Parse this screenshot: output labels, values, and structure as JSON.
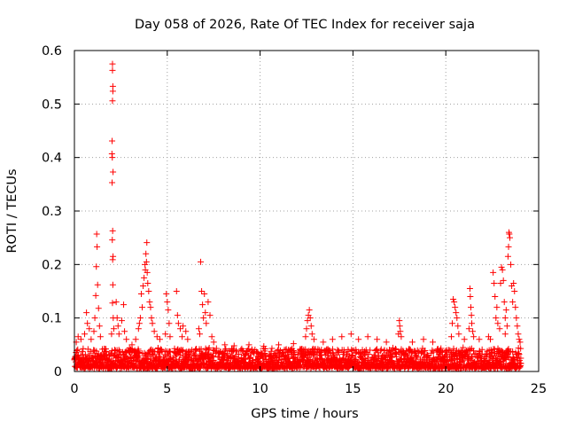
{
  "chart_data": {
    "type": "scatter",
    "title": "Day 058 of 2026, Rate Of TEC Index for receiver saja",
    "xlabel": "GPS time / hours",
    "ylabel": "ROTI / TECUs",
    "xlim": [
      0,
      25
    ],
    "ylim": [
      0,
      0.6
    ],
    "x_ticks": [
      0,
      5,
      10,
      15,
      20,
      25
    ],
    "x_tick_labels": [
      "0",
      "5",
      "10",
      "15",
      "20",
      "25"
    ],
    "y_ticks": [
      0,
      0.1,
      0.2,
      0.3,
      0.4,
      0.5,
      0.6
    ],
    "y_tick_labels": [
      "0",
      "0.1",
      "0.2",
      "0.3",
      "0.4",
      "0.5",
      "0.6"
    ],
    "grid": true,
    "marker": "+",
    "marker_color": "#ff0000",
    "series": [
      {
        "name": "ROTI",
        "baseline": {
          "x_start": 0.0,
          "x_end": 24.05,
          "count": 2400,
          "typical_min": 0.005,
          "typical_max": 0.045
        },
        "points": [
          {
            "x": 2.05,
            "y": 0.575
          },
          {
            "x": 2.05,
            "y": 0.563
          },
          {
            "x": 2.07,
            "y": 0.533
          },
          {
            "x": 2.07,
            "y": 0.524
          },
          {
            "x": 2.05,
            "y": 0.506
          },
          {
            "x": 2.03,
            "y": 0.431
          },
          {
            "x": 2.02,
            "y": 0.407
          },
          {
            "x": 2.04,
            "y": 0.4
          },
          {
            "x": 2.08,
            "y": 0.373
          },
          {
            "x": 2.03,
            "y": 0.353
          },
          {
            "x": 2.06,
            "y": 0.263
          },
          {
            "x": 2.04,
            "y": 0.246
          },
          {
            "x": 2.08,
            "y": 0.215
          },
          {
            "x": 2.06,
            "y": 0.209
          },
          {
            "x": 2.07,
            "y": 0.162
          },
          {
            "x": 2.05,
            "y": 0.128
          },
          {
            "x": 2.09,
            "y": 0.1
          },
          {
            "x": 2.12,
            "y": 0.08
          },
          {
            "x": 2.0,
            "y": 0.07
          },
          {
            "x": 1.2,
            "y": 0.257
          },
          {
            "x": 1.22,
            "y": 0.233
          },
          {
            "x": 1.18,
            "y": 0.196
          },
          {
            "x": 1.25,
            "y": 0.162
          },
          {
            "x": 1.15,
            "y": 0.142
          },
          {
            "x": 1.3,
            "y": 0.118
          },
          {
            "x": 1.1,
            "y": 0.1
          },
          {
            "x": 1.35,
            "y": 0.085
          },
          {
            "x": 1.05,
            "y": 0.075
          },
          {
            "x": 1.4,
            "y": 0.065
          },
          {
            "x": 0.65,
            "y": 0.11
          },
          {
            "x": 0.7,
            "y": 0.09
          },
          {
            "x": 0.8,
            "y": 0.08
          },
          {
            "x": 0.55,
            "y": 0.07
          },
          {
            "x": 0.2,
            "y": 0.065
          },
          {
            "x": 0.1,
            "y": 0.055
          },
          {
            "x": 0.35,
            "y": 0.06
          },
          {
            "x": 0.9,
            "y": 0.06
          },
          {
            "x": 2.25,
            "y": 0.13
          },
          {
            "x": 2.3,
            "y": 0.1
          },
          {
            "x": 2.35,
            "y": 0.085
          },
          {
            "x": 2.4,
            "y": 0.07
          },
          {
            "x": 2.55,
            "y": 0.095
          },
          {
            "x": 2.65,
            "y": 0.125
          },
          {
            "x": 2.7,
            "y": 0.075
          },
          {
            "x": 2.8,
            "y": 0.06
          },
          {
            "x": 3.1,
            "y": 0.05
          },
          {
            "x": 3.3,
            "y": 0.06
          },
          {
            "x": 3.55,
            "y": 0.1
          },
          {
            "x": 3.6,
            "y": 0.145
          },
          {
            "x": 3.65,
            "y": 0.12
          },
          {
            "x": 3.7,
            "y": 0.16
          },
          {
            "x": 3.75,
            "y": 0.175
          },
          {
            "x": 3.8,
            "y": 0.2
          },
          {
            "x": 3.82,
            "y": 0.19
          },
          {
            "x": 3.85,
            "y": 0.22
          },
          {
            "x": 3.88,
            "y": 0.205
          },
          {
            "x": 3.9,
            "y": 0.241
          },
          {
            "x": 3.92,
            "y": 0.185
          },
          {
            "x": 3.95,
            "y": 0.165
          },
          {
            "x": 4.0,
            "y": 0.15
          },
          {
            "x": 4.05,
            "y": 0.13
          },
          {
            "x": 4.1,
            "y": 0.12
          },
          {
            "x": 4.15,
            "y": 0.1
          },
          {
            "x": 4.2,
            "y": 0.09
          },
          {
            "x": 4.3,
            "y": 0.075
          },
          {
            "x": 4.45,
            "y": 0.065
          },
          {
            "x": 3.45,
            "y": 0.08
          },
          {
            "x": 3.5,
            "y": 0.09
          },
          {
            "x": 4.6,
            "y": 0.06
          },
          {
            "x": 4.95,
            "y": 0.145
          },
          {
            "x": 5.0,
            "y": 0.13
          },
          {
            "x": 5.05,
            "y": 0.115
          },
          {
            "x": 5.1,
            "y": 0.09
          },
          {
            "x": 4.9,
            "y": 0.07
          },
          {
            "x": 5.15,
            "y": 0.065
          },
          {
            "x": 5.5,
            "y": 0.15
          },
          {
            "x": 5.55,
            "y": 0.105
          },
          {
            "x": 5.6,
            "y": 0.09
          },
          {
            "x": 5.7,
            "y": 0.08
          },
          {
            "x": 5.85,
            "y": 0.085
          },
          {
            "x": 6.0,
            "y": 0.075
          },
          {
            "x": 5.8,
            "y": 0.065
          },
          {
            "x": 6.1,
            "y": 0.06
          },
          {
            "x": 6.8,
            "y": 0.205
          },
          {
            "x": 6.85,
            "y": 0.15
          },
          {
            "x": 7.0,
            "y": 0.145
          },
          {
            "x": 6.9,
            "y": 0.125
          },
          {
            "x": 7.05,
            "y": 0.11
          },
          {
            "x": 6.95,
            "y": 0.1
          },
          {
            "x": 7.1,
            "y": 0.09
          },
          {
            "x": 7.2,
            "y": 0.13
          },
          {
            "x": 7.3,
            "y": 0.105
          },
          {
            "x": 6.7,
            "y": 0.08
          },
          {
            "x": 6.75,
            "y": 0.07
          },
          {
            "x": 7.4,
            "y": 0.065
          },
          {
            "x": 7.5,
            "y": 0.055
          },
          {
            "x": 8.1,
            "y": 0.05
          },
          {
            "x": 8.6,
            "y": 0.048
          },
          {
            "x": 9.4,
            "y": 0.05
          },
          {
            "x": 10.2,
            "y": 0.047
          },
          {
            "x": 11.0,
            "y": 0.05
          },
          {
            "x": 11.8,
            "y": 0.052
          },
          {
            "x": 12.5,
            "y": 0.08
          },
          {
            "x": 12.55,
            "y": 0.095
          },
          {
            "x": 12.6,
            "y": 0.105
          },
          {
            "x": 12.65,
            "y": 0.115
          },
          {
            "x": 12.7,
            "y": 0.1
          },
          {
            "x": 12.75,
            "y": 0.085
          },
          {
            "x": 12.8,
            "y": 0.07
          },
          {
            "x": 12.45,
            "y": 0.065
          },
          {
            "x": 12.9,
            "y": 0.06
          },
          {
            "x": 13.4,
            "y": 0.055
          },
          {
            "x": 13.9,
            "y": 0.06
          },
          {
            "x": 14.4,
            "y": 0.065
          },
          {
            "x": 14.9,
            "y": 0.07
          },
          {
            "x": 15.3,
            "y": 0.06
          },
          {
            "x": 15.8,
            "y": 0.065
          },
          {
            "x": 16.3,
            "y": 0.06
          },
          {
            "x": 16.8,
            "y": 0.055
          },
          {
            "x": 17.5,
            "y": 0.095
          },
          {
            "x": 17.52,
            "y": 0.085
          },
          {
            "x": 17.55,
            "y": 0.075
          },
          {
            "x": 17.45,
            "y": 0.07
          },
          {
            "x": 17.6,
            "y": 0.065
          },
          {
            "x": 18.2,
            "y": 0.055
          },
          {
            "x": 18.8,
            "y": 0.06
          },
          {
            "x": 19.3,
            "y": 0.055
          },
          {
            "x": 20.4,
            "y": 0.135
          },
          {
            "x": 20.45,
            "y": 0.13
          },
          {
            "x": 20.5,
            "y": 0.12
          },
          {
            "x": 20.55,
            "y": 0.11
          },
          {
            "x": 20.6,
            "y": 0.1
          },
          {
            "x": 20.35,
            "y": 0.09
          },
          {
            "x": 20.65,
            "y": 0.085
          },
          {
            "x": 20.7,
            "y": 0.07
          },
          {
            "x": 20.3,
            "y": 0.065
          },
          {
            "x": 21.0,
            "y": 0.06
          },
          {
            "x": 21.3,
            "y": 0.155
          },
          {
            "x": 21.32,
            "y": 0.14
          },
          {
            "x": 21.35,
            "y": 0.12
          },
          {
            "x": 21.38,
            "y": 0.105
          },
          {
            "x": 21.4,
            "y": 0.09
          },
          {
            "x": 21.25,
            "y": 0.08
          },
          {
            "x": 21.45,
            "y": 0.075
          },
          {
            "x": 21.5,
            "y": 0.065
          },
          {
            "x": 21.8,
            "y": 0.06
          },
          {
            "x": 22.3,
            "y": 0.065
          },
          {
            "x": 22.55,
            "y": 0.185
          },
          {
            "x": 22.6,
            "y": 0.165
          },
          {
            "x": 22.65,
            "y": 0.14
          },
          {
            "x": 22.7,
            "y": 0.1
          },
          {
            "x": 22.75,
            "y": 0.12
          },
          {
            "x": 22.8,
            "y": 0.09
          },
          {
            "x": 22.9,
            "y": 0.08
          },
          {
            "x": 22.95,
            "y": 0.165
          },
          {
            "x": 23.0,
            "y": 0.195
          },
          {
            "x": 23.05,
            "y": 0.19
          },
          {
            "x": 23.1,
            "y": 0.17
          },
          {
            "x": 23.15,
            "y": 0.13
          },
          {
            "x": 23.2,
            "y": 0.1
          },
          {
            "x": 23.25,
            "y": 0.115
          },
          {
            "x": 23.3,
            "y": 0.085
          },
          {
            "x": 23.35,
            "y": 0.215
          },
          {
            "x": 23.38,
            "y": 0.233
          },
          {
            "x": 23.4,
            "y": 0.26
          },
          {
            "x": 23.42,
            "y": 0.257
          },
          {
            "x": 23.45,
            "y": 0.25
          },
          {
            "x": 23.5,
            "y": 0.2
          },
          {
            "x": 23.55,
            "y": 0.16
          },
          {
            "x": 23.6,
            "y": 0.13
          },
          {
            "x": 23.65,
            "y": 0.165
          },
          {
            "x": 23.7,
            "y": 0.15
          },
          {
            "x": 23.75,
            "y": 0.12
          },
          {
            "x": 23.8,
            "y": 0.1
          },
          {
            "x": 23.85,
            "y": 0.085
          },
          {
            "x": 23.9,
            "y": 0.07
          },
          {
            "x": 23.95,
            "y": 0.06
          },
          {
            "x": 24.0,
            "y": 0.055
          },
          {
            "x": 23.2,
            "y": 0.07
          },
          {
            "x": 22.4,
            "y": 0.06
          }
        ]
      }
    ]
  }
}
